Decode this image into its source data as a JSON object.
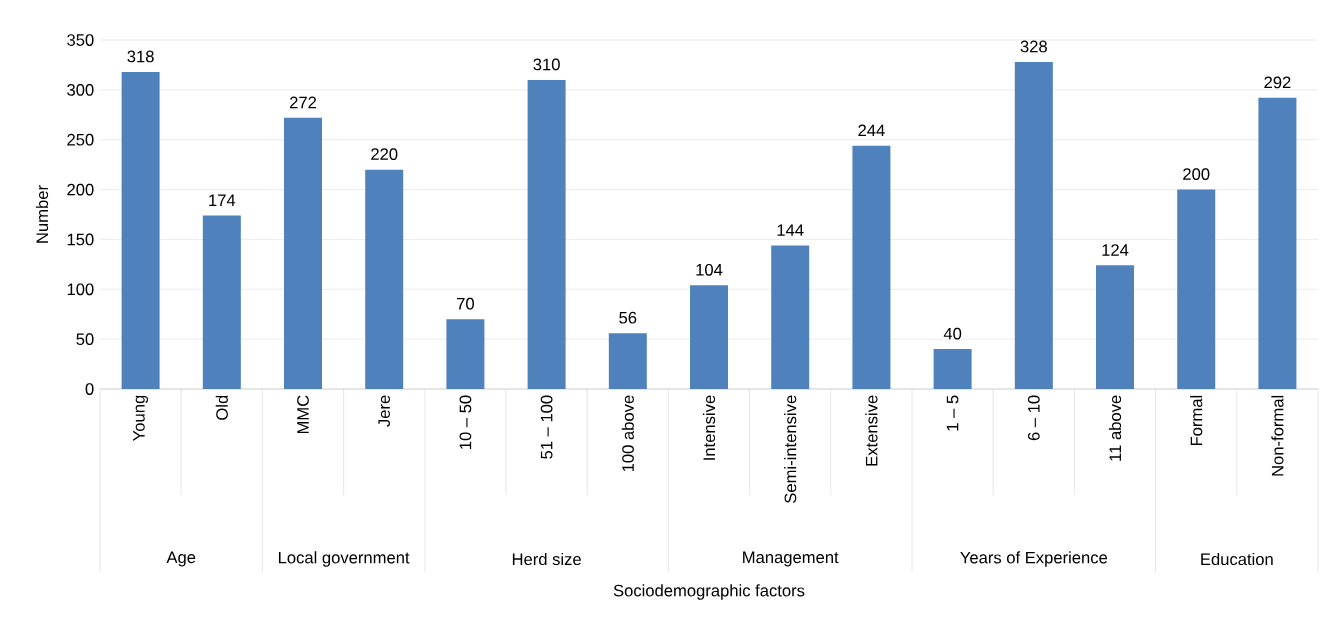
{
  "chart_data": {
    "type": "bar",
    "categories": [
      "Young",
      "Old",
      "MMC",
      "Jere",
      "10 – 50",
      "51 – 100",
      "100 above",
      "Intensive",
      "Semi-intensive",
      "Extensive",
      "1 – 5",
      "6 – 10",
      "11 above",
      "Formal",
      "Non-formal"
    ],
    "values": [
      318,
      174,
      272,
      220,
      70,
      310,
      56,
      104,
      144,
      244,
      40,
      328,
      124,
      200,
      292
    ],
    "color": "#4f81bd",
    "xlabel": "Sociodemographic factors",
    "ylabel": "Number",
    "annotations": [
      "Age",
      "Local government",
      "Herd size",
      "Management",
      "Years of Experience",
      "Education"
    ],
    "ylim": [
      0,
      350
    ],
    "yticks": [
      0,
      50,
      100,
      150,
      200,
      250,
      300,
      350
    ],
    "grid": "y",
    "data_labels": true
  }
}
